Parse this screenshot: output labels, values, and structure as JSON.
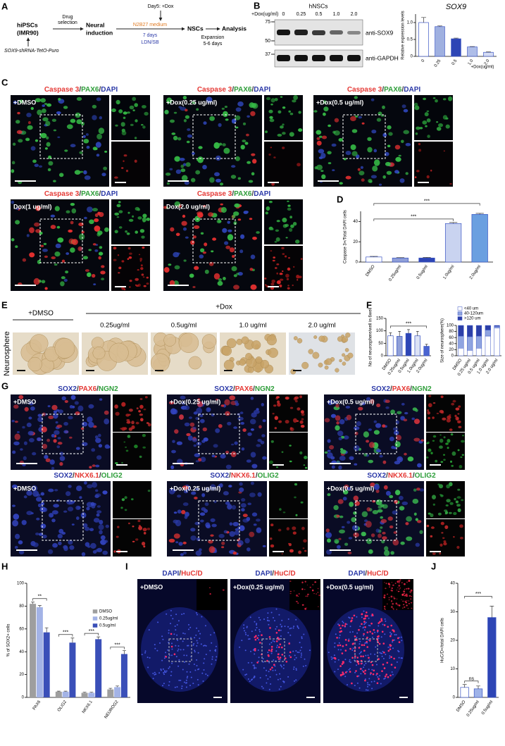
{
  "panel_labels": [
    "A",
    "B",
    "C",
    "D",
    "E",
    "F",
    "G",
    "H",
    "I",
    "J"
  ],
  "panel_a": {
    "start": "hiPSCs",
    "start_line": "(IMR90)",
    "construct": "SOX9-shRNA-TetO-Puro",
    "drug": [
      "Drug",
      "selection"
    ],
    "induction": [
      "Neural",
      "induction"
    ],
    "dox_day": "Day5: +Dox",
    "medium": "N2B27 medium",
    "duration": "7 days",
    "inhibitors": "LDN/SB",
    "nscs": "NSCs",
    "expansion": "Expansion",
    "expansion_days": "5-6 days",
    "analysis": "Analysis"
  },
  "panel_b": {
    "title": "hNSCs",
    "dose_label": "+Dox(ug/ml)",
    "doses": [
      "0",
      "0.25",
      "0.5",
      "1.0",
      "2.0"
    ],
    "markers": [
      75,
      50,
      37
    ],
    "antibodies": [
      "anti-SOX9",
      "anti-GAPDH"
    ]
  },
  "panel_c": {
    "separator": "/",
    "stains": [
      {
        "name": "Caspase 3",
        "color": "#e53935"
      },
      {
        "name": "PAX6",
        "color": "#2e9e3a"
      },
      {
        "name": "DAPI",
        "color": "#2c3aa8"
      }
    ],
    "conditions": [
      "+DMSO",
      "+Dox(0.25 ug/ml)",
      "+Dox(0.5 ug/ml)",
      "Dox(1 ug/ml)",
      "Dox(2.0 ug/ml)"
    ]
  },
  "panel_e": {
    "side_label": "Neurosphere",
    "control": "+DMSO",
    "treatment": "+Dox",
    "doses": [
      "0.25ug/ml",
      "0.5ug/ml",
      "1.0 ug/ml",
      "2.0 ug/ml"
    ]
  },
  "panel_g": {
    "separator": "/",
    "rows": [
      {
        "stains": [
          {
            "name": "SOX2",
            "color": "#2c3aa8"
          },
          {
            "name": "PAX6",
            "color": "#e53935"
          },
          {
            "name": "NGN2",
            "color": "#2e9e3a"
          }
        ],
        "conditions": [
          "+DMSO",
          "+Dox(0.25 ug/ml)",
          "+Dox(0.5 ug/ml)"
        ]
      },
      {
        "stains": [
          {
            "name": "SOX2",
            "color": "#2c3aa8"
          },
          {
            "name": "NKX6.1",
            "color": "#e53935"
          },
          {
            "name": "OLIG2",
            "color": "#2e9e3a"
          }
        ],
        "conditions": [
          "+DMSO",
          "+Dox(0.25 ug/ml)",
          "+Dox(0.5 ug/ml)"
        ]
      }
    ]
  },
  "panel_i": {
    "separator": "/",
    "stains": [
      {
        "name": "DAPI",
        "color": "#2c3aa8"
      },
      {
        "name": "HuC/D",
        "color": "#e53935"
      }
    ],
    "conditions": [
      "+DMSO",
      "+Dox(0.25 ug/ml)",
      "+Dox(0.5 ug/ml)"
    ]
  },
  "chart_data": [
    {
      "type": "bar",
      "title": "SOX9",
      "y_label": "Relative expression levels",
      "x_label": "+Dox(ug/ml)",
      "categories": [
        "0",
        "0.25",
        "0.5",
        "1.0",
        "2.0"
      ],
      "values": [
        1.0,
        0.88,
        0.52,
        0.28,
        0.12
      ],
      "errors": [
        0.15,
        0.02,
        0.02,
        0.01,
        0.01
      ],
      "colors": [
        "#ffffff",
        "#9fb0e0",
        "#2d45b5",
        "#aebde8",
        "#d5dcf3"
      ],
      "edge_color": "#3b55c4",
      "ylim": [
        0,
        1.25
      ],
      "yticks": [
        0,
        0.5,
        {
          "value": 1,
          "label": "1.0"
        }
      ]
    },
    {
      "type": "bar",
      "y_label": "Caspase 3+/Total DAPI cells",
      "categories": [
        "DMSO",
        "0.25ug/ml",
        "0.5ug/ml",
        "1.0ug/ml",
        "2.0ug/ml"
      ],
      "values": [
        5,
        4,
        4,
        38,
        47
      ],
      "errors": [
        0.6,
        0.4,
        0.6,
        1,
        1
      ],
      "colors": [
        "#ffffff",
        "#8f9fd8",
        "#2d45b5",
        "#c9d3f0",
        "#6a9fe0"
      ],
      "edge_color": "#3b55c4",
      "ylim": [
        0,
        50
      ],
      "yticks": [
        0,
        20,
        40
      ],
      "annotations": [
        "***",
        "***"
      ]
    },
    {
      "type": "bar",
      "y_label": "No of neurosphere/well in 6well",
      "categories": [
        "DMSO",
        "0.25ug/ml",
        "0.5ug/ml",
        "1.0ug/ml",
        "2.0ug/ml"
      ],
      "values": [
        80,
        78,
        90,
        80,
        38
      ],
      "errors": [
        12,
        20,
        15,
        18,
        8
      ],
      "colors": [
        "#ffffff",
        "#8f9fd8",
        "#2d45b5",
        "#dde3f5",
        "#4a64d0"
      ],
      "edge_color": "#3b55c4",
      "ylim": [
        0,
        150
      ],
      "yticks": [
        0,
        50,
        100,
        150
      ],
      "annotations": [
        "***"
      ]
    },
    {
      "type": "stacked_bar",
      "y_label": "Size of neurosphere(%)",
      "categories": [
        "DMSO",
        "0.25 ug/ml",
        "0.5 ug/ml",
        "1.0 ug/ml",
        "2.0 ug/ml"
      ],
      "series": [
        {
          "name": "<40 um",
          "color": "#ffffff",
          "values": [
            25,
            18,
            25,
            65,
            92
          ]
        },
        {
          "name": "40-120um",
          "color": "#8fa4e0",
          "values": [
            40,
            45,
            40,
            20,
            5
          ]
        },
        {
          "name": ">120 um",
          "color": "#2c3fa8",
          "values": [
            35,
            37,
            35,
            15,
            3
          ]
        }
      ],
      "edge_color": "#3b55c4",
      "ylim": [
        0,
        100
      ],
      "yticks": [
        0,
        20,
        40,
        60,
        80,
        100
      ]
    },
    {
      "type": "grouped_bar",
      "y_label": "% of SOX2+ cells",
      "categories": [
        "PAX6",
        "OLIG2",
        "NKX6.1",
        "NEUROG2"
      ],
      "series": [
        {
          "name": "DMSO",
          "color": "#9e9e9e",
          "values": [
            82,
            5,
            4,
            7
          ],
          "errors": [
            1.5,
            0.5,
            0.5,
            1
          ]
        },
        {
          "name": "0.25ug/ml",
          "color": "#a3b3e6",
          "values": [
            79,
            5,
            4,
            9
          ],
          "errors": [
            1.5,
            0.5,
            0.5,
            1
          ]
        },
        {
          "name": "0.5ug/ml",
          "color": "#3a4fb8",
          "values": [
            57,
            48,
            51,
            38
          ],
          "errors": [
            4,
            4,
            2,
            3
          ]
        }
      ],
      "ylim": [
        0,
        100
      ],
      "yticks": [
        0,
        20,
        40,
        60,
        80,
        100
      ],
      "annotations": [
        "**",
        "***",
        "***",
        "***"
      ]
    },
    {
      "type": "bar",
      "y_label": "HuC/D+/total DAPI cells",
      "categories": [
        "DMSO",
        "0.25ug/ml",
        "0.5ug/ml"
      ],
      "values": [
        3.5,
        3,
        28
      ],
      "errors": [
        1,
        1,
        4
      ],
      "colors": [
        "#ffffff",
        "#9fb3e8",
        "#2d45b5"
      ],
      "edge_color": "#3b55c4",
      "ylim": [
        0,
        40
      ],
      "yticks": [
        0,
        10,
        20,
        30,
        40
      ],
      "annotations": [
        "ns",
        "***"
      ]
    }
  ]
}
